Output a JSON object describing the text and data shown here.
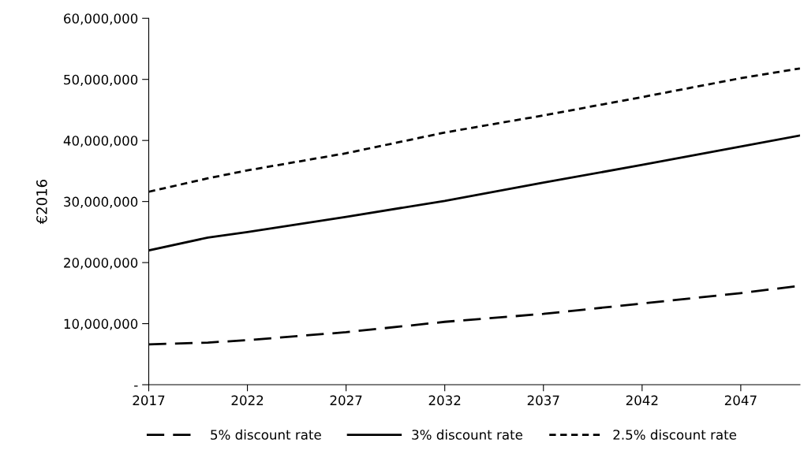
{
  "chart_data": {
    "type": "line",
    "ylabel": "€2016",
    "x": [
      2017,
      2020,
      2022,
      2027,
      2032,
      2037,
      2042,
      2047,
      2050
    ],
    "series": [
      {
        "name": "5% discount rate",
        "color": "#000000",
        "line_style": "dashed",
        "values": [
          6600000,
          6900000,
          7300000,
          8600000,
          10300000,
          11600000,
          13300000,
          15000000,
          16200000
        ]
      },
      {
        "name": "3% discount rate",
        "color": "#000000",
        "line_style": "solid",
        "values": [
          22000000,
          24100000,
          25000000,
          27500000,
          30100000,
          33100000,
          36000000,
          39000000,
          40800000
        ]
      },
      {
        "name": "2.5% discount rate",
        "color": "#000000",
        "line_style": "dotted",
        "values": [
          31600000,
          33800000,
          35100000,
          37900000,
          41300000,
          44100000,
          47100000,
          50200000,
          51800000
        ]
      }
    ],
    "xlim": [
      2017,
      2050
    ],
    "xticks": [
      2017,
      2022,
      2027,
      2032,
      2037,
      2042,
      2047
    ],
    "ylim": [
      0,
      60000000
    ],
    "yticks": [
      {
        "value": 0,
        "label": "-"
      },
      {
        "value": 10000000,
        "label": "10,000,000"
      },
      {
        "value": 20000000,
        "label": "20,000,000"
      },
      {
        "value": 30000000,
        "label": "30,000,000"
      },
      {
        "value": 40000000,
        "label": "40,000,000"
      },
      {
        "value": 50000000,
        "label": "50,000,000"
      },
      {
        "value": 60000000,
        "label": "60,000,000"
      }
    ],
    "grid": false,
    "legend": "bottom"
  }
}
